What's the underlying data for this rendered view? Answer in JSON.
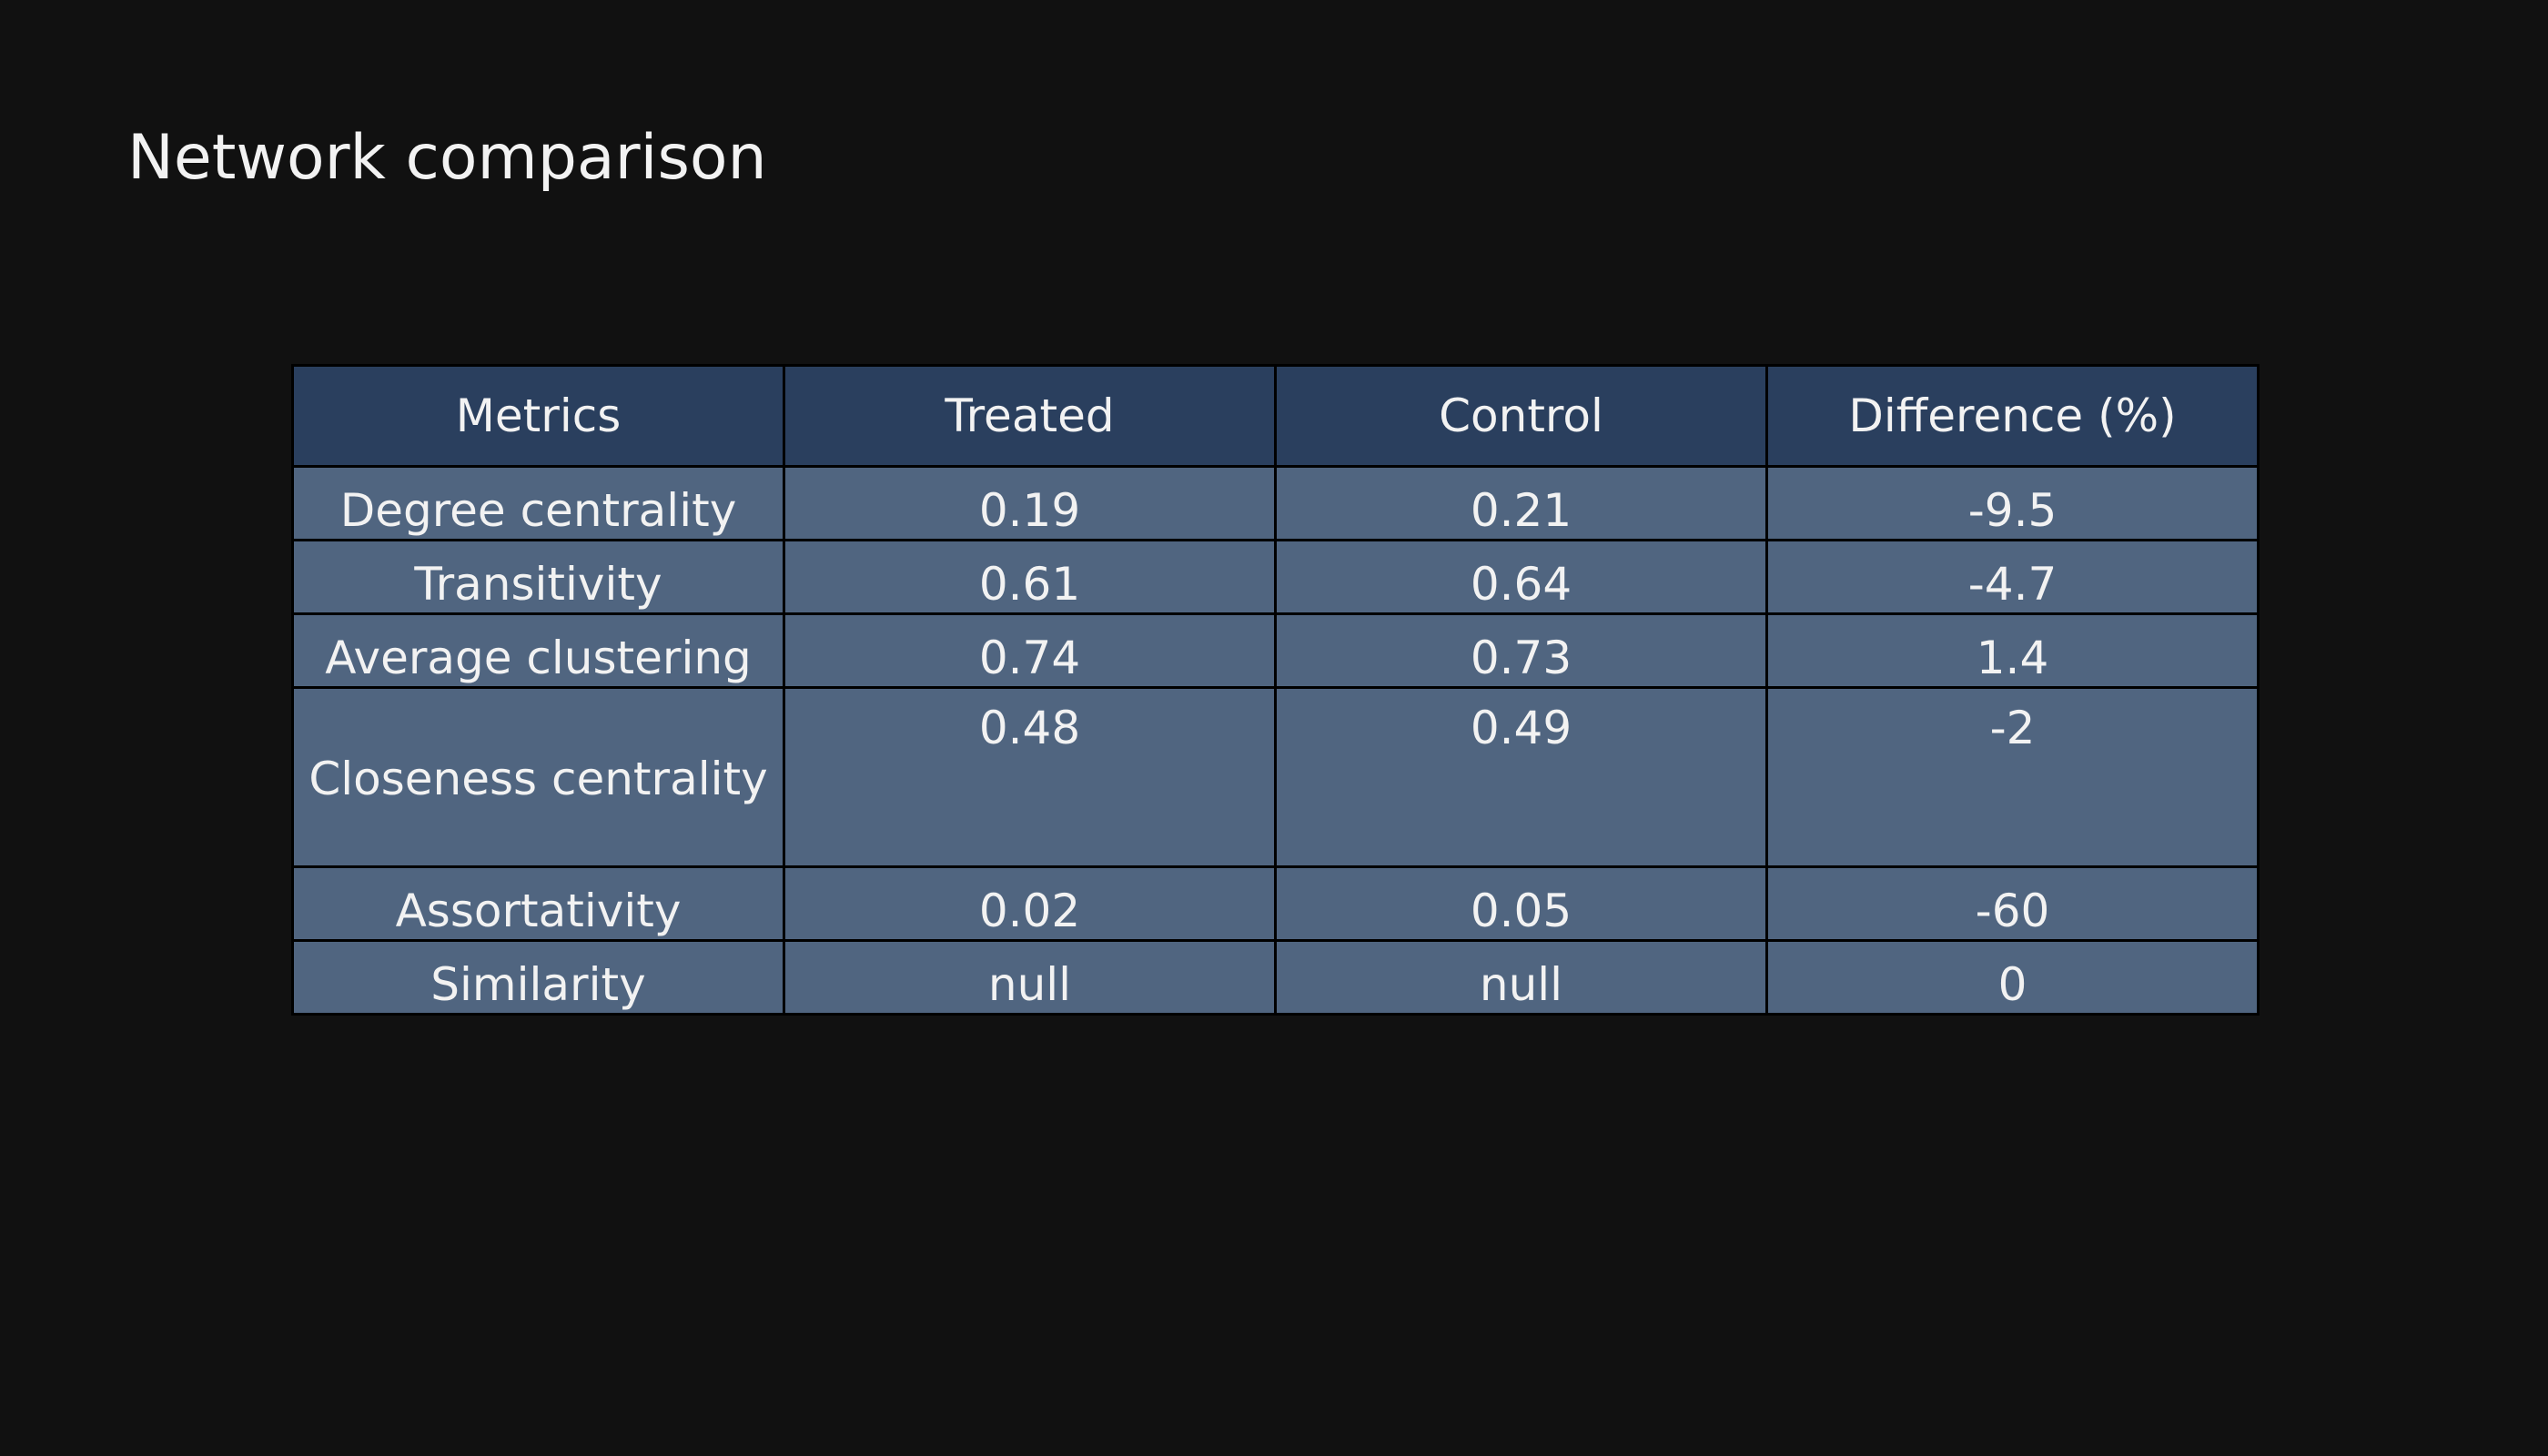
{
  "title": "Network comparison",
  "colors": {
    "background": "#111111",
    "header_fill": "#2a3f5e",
    "cell_fill": "#506580",
    "text": "#f2f2f2",
    "border": "#000000"
  },
  "chart_data": {
    "type": "table",
    "title": "Network comparison",
    "columns": [
      "Metrics",
      "Treated",
      "Control",
      "Difference (%)"
    ],
    "rows": [
      [
        "Degree centrality",
        "0.19",
        "0.21",
        "-9.5"
      ],
      [
        "Transitivity",
        "0.61",
        "0.64",
        "-4.7"
      ],
      [
        "Average clustering",
        "0.74",
        "0.73",
        "1.4"
      ],
      [
        "Closeness centrality",
        "0.48",
        "0.49",
        "-2"
      ],
      [
        "Assortativity",
        "0.02",
        "0.05",
        "-60"
      ],
      [
        "Similarity",
        "null",
        "null",
        "0"
      ]
    ]
  }
}
